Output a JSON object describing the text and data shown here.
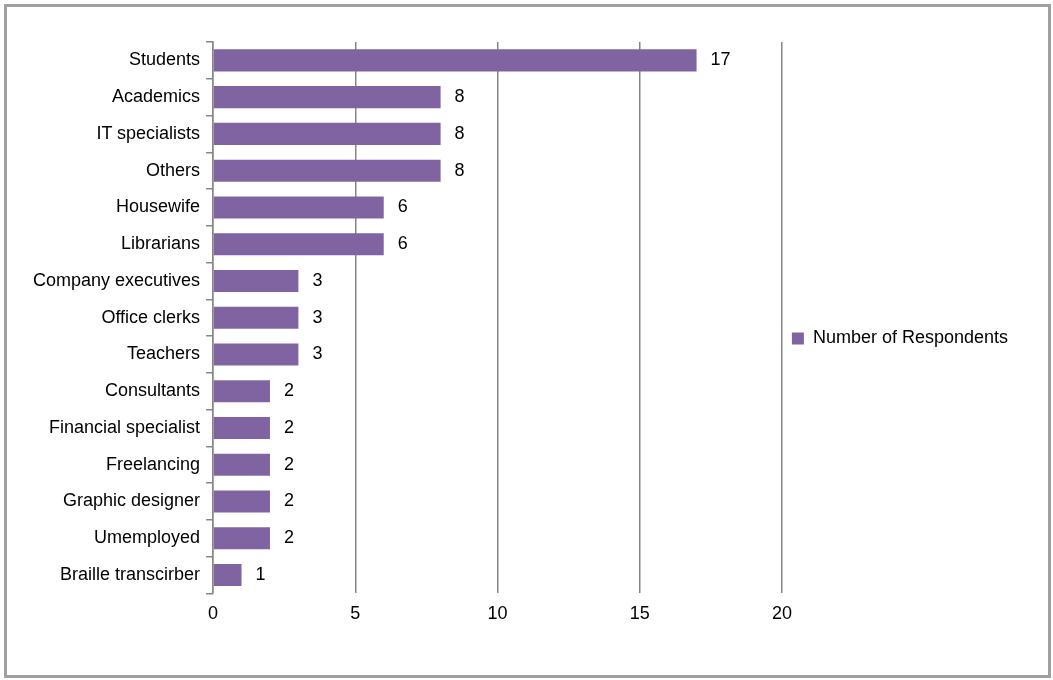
{
  "chart_data": {
    "type": "bar",
    "orientation": "horizontal",
    "categories": [
      "Students",
      "Academics",
      "IT specialists",
      "Others",
      "Housewife",
      "Librarians",
      "Company executives",
      "Office clerks",
      "Teachers",
      "Consultants",
      "Financial specialist",
      "Freelancing",
      "Graphic designer",
      "Umemployed",
      "Braille transcirber"
    ],
    "series": [
      {
        "name": "Number of Respondents",
        "color": "#8064a2",
        "values": [
          17,
          8,
          8,
          8,
          6,
          6,
          3,
          3,
          3,
          2,
          2,
          2,
          2,
          2,
          1
        ]
      }
    ],
    "xlim": [
      0,
      20
    ],
    "xticks": [
      0,
      5,
      10,
      15,
      20
    ],
    "grid": "x",
    "legend": "right",
    "data_labels": true
  }
}
